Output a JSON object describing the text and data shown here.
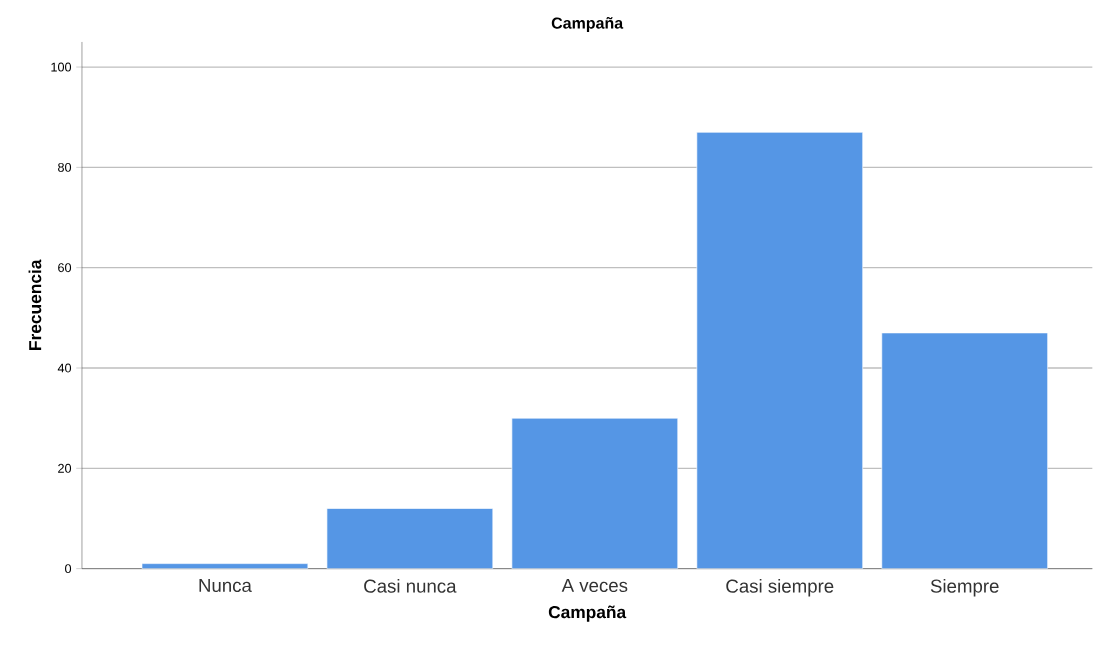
{
  "chart_data": {
    "type": "bar",
    "title": "Campaña",
    "xlabel": "Campaña",
    "ylabel": "Frecuencia",
    "categories": [
      "Nunca",
      "Casi nunca",
      "A veces",
      "Casi siempre",
      "Siempre"
    ],
    "values": [
      1,
      12,
      30,
      87,
      47
    ],
    "color": "#5596e5",
    "ylim": [
      0,
      105
    ],
    "yticks": [
      0,
      20,
      40,
      60,
      80,
      100
    ],
    "grid": "y"
  }
}
